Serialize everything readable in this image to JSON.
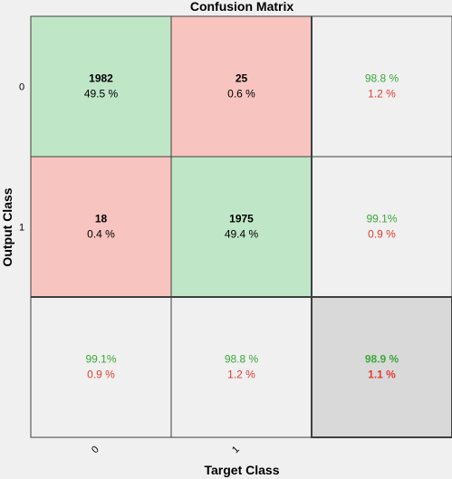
{
  "chart_data": {
    "type": "heatmap",
    "title": "Confusion Matrix",
    "xlabel": "Target Class",
    "ylabel": "Output Class",
    "x_tick_labels": [
      "0",
      "1"
    ],
    "y_tick_labels": [
      "0",
      "1"
    ],
    "cells": [
      [
        {
          "count": "1982",
          "percent": "49.5 %",
          "kind": "correct"
        },
        {
          "count": "25",
          "percent": "0.6 %",
          "kind": "incorrect"
        },
        {
          "good": "98.8 %",
          "bad": "1.2 %",
          "kind": "summary"
        }
      ],
      [
        {
          "count": "18",
          "percent": "0.4 %",
          "kind": "incorrect"
        },
        {
          "count": "1975",
          "percent": "49.4 %",
          "kind": "correct"
        },
        {
          "good": "99.1%",
          "bad": "0.9 %",
          "kind": "summary"
        }
      ],
      [
        {
          "good": "99.1%",
          "bad": "0.9 %",
          "kind": "summary"
        },
        {
          "good": "98.8 %",
          "bad": "1.2 %",
          "kind": "summary"
        },
        {
          "good": "98.9 %",
          "bad": "1.1 %",
          "kind": "total"
        }
      ]
    ],
    "colors": {
      "correct": "#c0e6c8",
      "incorrect": "#f8c4c0",
      "summary": "#f0f0f0",
      "total": "#d9d9d9",
      "good_text": "#3aa83a",
      "bad_text": "#e03c32",
      "border": "#404040"
    }
  }
}
